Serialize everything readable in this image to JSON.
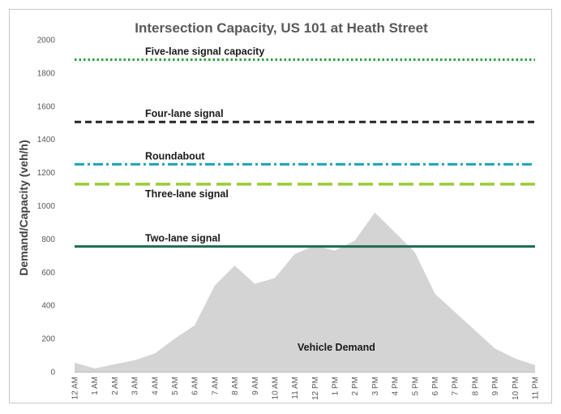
{
  "chart_data": {
    "type": "area",
    "title": "Intersection Capacity, US 101 at Heath Street",
    "ylabel": "Demand/Capacity (veh/h)",
    "xlabel": "",
    "ylim": [
      0,
      2000
    ],
    "yticks": [
      0,
      200,
      400,
      600,
      800,
      1000,
      1200,
      1400,
      1600,
      1800,
      2000
    ],
    "grid": false,
    "categories": [
      "12 AM",
      "1 AM",
      "2 AM",
      "3 AM",
      "4 AM",
      "5 AM",
      "6 AM",
      "7 AM",
      "8 AM",
      "9 AM",
      "10 AM",
      "11 AM",
      "12 PM",
      "1 PM",
      "2 PM",
      "3 PM",
      "4 PM",
      "5 PM",
      "6 PM",
      "7 PM",
      "8 PM",
      "9 PM",
      "10 PM",
      "11 PM"
    ],
    "demand": {
      "name": "Vehicle Demand",
      "color": "#d4d4d4",
      "values": [
        55,
        20,
        45,
        70,
        110,
        200,
        280,
        520,
        640,
        530,
        565,
        710,
        760,
        730,
        790,
        960,
        840,
        720,
        470,
        360,
        250,
        140,
        80,
        40
      ]
    },
    "capacities": [
      {
        "name": "Five-lane signal capacity",
        "value": 1880,
        "color": "#2e9c3f",
        "style": "dotted"
      },
      {
        "name": "Four-lane signal",
        "value": 1505,
        "color": "#262626",
        "style": "dashed"
      },
      {
        "name": "Roundabout",
        "value": 1250,
        "color": "#1fa3b8",
        "style": "dashdot"
      },
      {
        "name": "Three-lane signal",
        "value": 1130,
        "color": "#9acd32",
        "style": "longdash"
      },
      {
        "name": "Two-lane signal",
        "value": 755,
        "color": "#1d6b4f",
        "style": "solid"
      }
    ]
  }
}
